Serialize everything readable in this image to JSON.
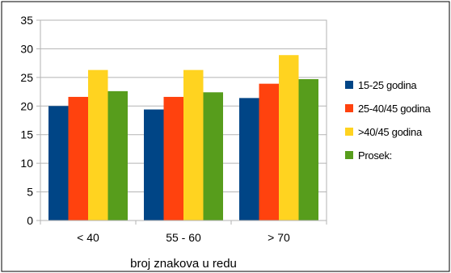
{
  "chart_data": {
    "type": "bar",
    "categories": [
      "< 40",
      "55 - 60",
      "> 70"
    ],
    "series": [
      {
        "name": "15-25 godina",
        "values": [
          20.0,
          19.4,
          21.4
        ],
        "color": "#004586"
      },
      {
        "name": "25-40/45 godina",
        "values": [
          21.6,
          21.6,
          23.9
        ],
        "color": "#ff420e"
      },
      {
        "name": ">40/45 godina",
        "values": [
          26.3,
          26.3,
          28.9
        ],
        "color": "#ffd320"
      },
      {
        "name": "Prosek:",
        "values": [
          22.6,
          22.4,
          24.7
        ],
        "color": "#579d1c"
      }
    ],
    "title": "",
    "xlabel": "broj znakova u redu",
    "ylabel": "",
    "ylim": [
      0,
      35
    ],
    "yticks": [
      "0",
      "5",
      "10",
      "15",
      "20",
      "25",
      "30",
      "35"
    ],
    "grid": true,
    "legend": "right"
  }
}
